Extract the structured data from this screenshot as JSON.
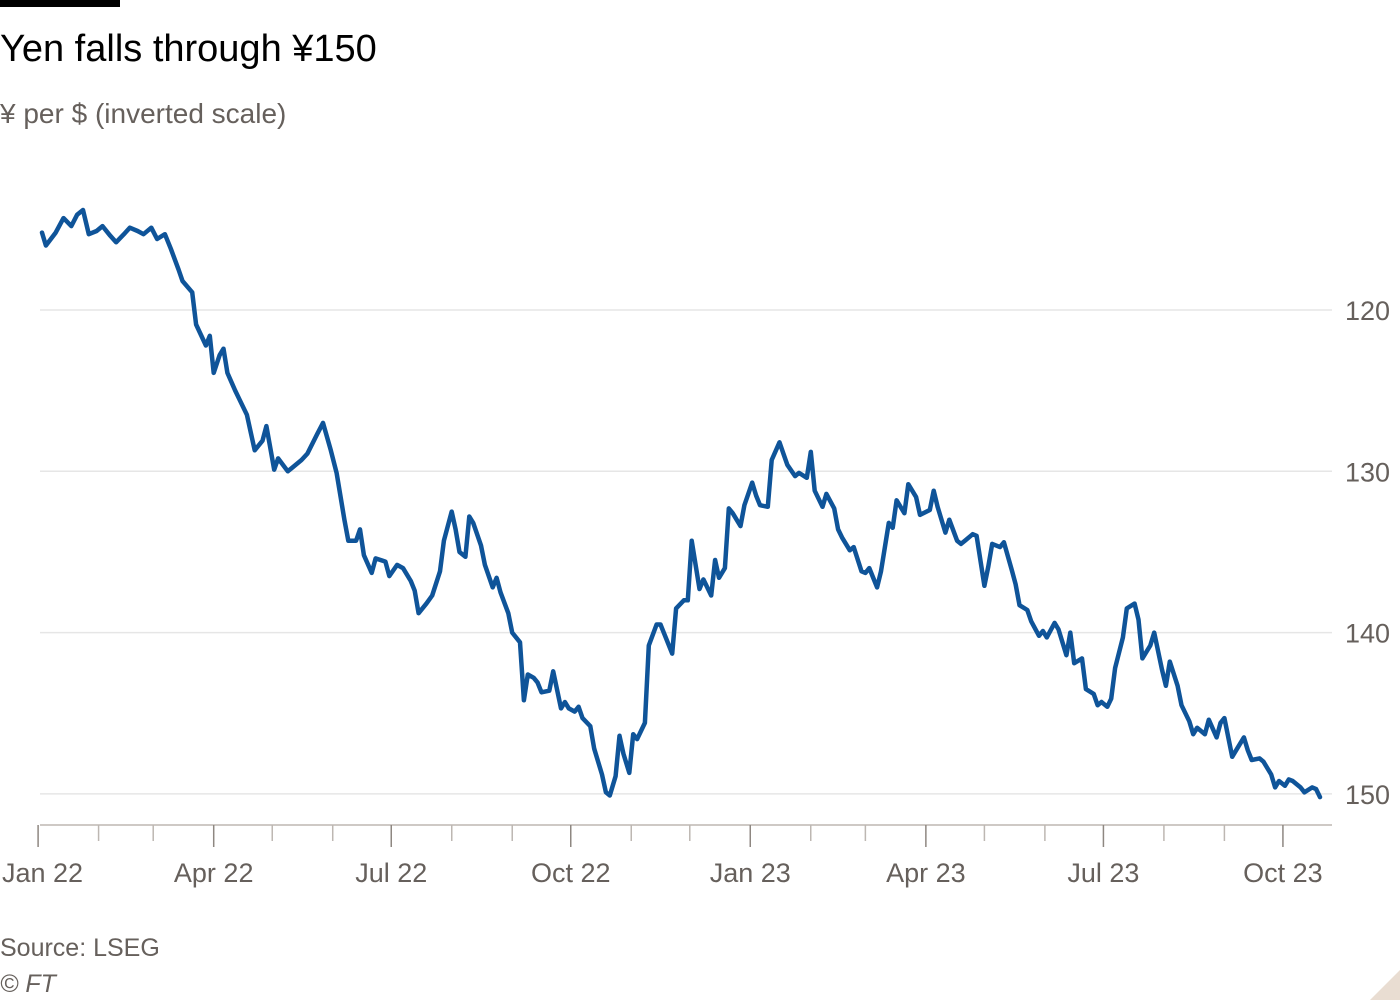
{
  "header": {
    "title": "Yen falls through ¥150",
    "subtitle": "¥ per $ (inverted scale)"
  },
  "footer": {
    "source": "Source: LSEG",
    "copyright": "© FT"
  },
  "colors": {
    "line": "#0f5499",
    "grid": "#e6e6e6",
    "text_muted": "#66605c"
  },
  "chart_data": {
    "type": "line",
    "title": "Yen falls through ¥150",
    "subtitle": "¥ per $ (inverted scale)",
    "xlabel": "",
    "ylabel": "",
    "y_inverted": true,
    "ylim": [
      110,
      152
    ],
    "y_ticks": [
      120,
      130,
      140,
      150
    ],
    "y_tick_labels": [
      "120",
      "130",
      "140",
      "150"
    ],
    "x_range": [
      "2022-01-03",
      "2023-10-20"
    ],
    "x_ticks": [
      "2022-01-01",
      "2022-02-01",
      "2022-03-01",
      "2022-04-01",
      "2022-05-01",
      "2022-06-01",
      "2022-07-01",
      "2022-08-01",
      "2022-09-01",
      "2022-10-01",
      "2022-11-01",
      "2022-12-01",
      "2023-01-01",
      "2023-02-01",
      "2023-03-01",
      "2023-04-01",
      "2023-05-01",
      "2023-06-01",
      "2023-07-01",
      "2023-08-01",
      "2023-09-01",
      "2023-10-01"
    ],
    "x_tick_labels": [
      {
        "date": "2022-01-01",
        "label": "Jan 22"
      },
      {
        "date": "2022-04-01",
        "label": "Apr 22"
      },
      {
        "date": "2022-07-01",
        "label": "Jul 22"
      },
      {
        "date": "2022-10-01",
        "label": "Oct 22"
      },
      {
        "date": "2023-01-01",
        "label": "Jan 23"
      },
      {
        "date": "2023-04-01",
        "label": "Apr 23"
      },
      {
        "date": "2023-07-01",
        "label": "Jul 23"
      },
      {
        "date": "2023-10-01",
        "label": "Oct 23"
      }
    ],
    "grid": true,
    "legend": "none",
    "series": [
      {
        "points": [
          [
            "2022-01-03",
            115.2
          ],
          [
            "2022-01-05",
            116.0
          ],
          [
            "2022-01-10",
            115.2
          ],
          [
            "2022-01-14",
            114.3
          ],
          [
            "2022-01-18",
            114.8
          ],
          [
            "2022-01-21",
            114.1
          ],
          [
            "2022-01-24",
            113.8
          ],
          [
            "2022-01-27",
            115.3
          ],
          [
            "2022-01-31",
            115.1
          ],
          [
            "2022-02-03",
            114.8
          ],
          [
            "2022-02-07",
            115.4
          ],
          [
            "2022-02-10",
            115.8
          ],
          [
            "2022-02-14",
            115.3
          ],
          [
            "2022-02-17",
            114.9
          ],
          [
            "2022-02-21",
            115.1
          ],
          [
            "2022-02-24",
            115.3
          ],
          [
            "2022-02-28",
            114.9
          ],
          [
            "2022-03-03",
            115.6
          ],
          [
            "2022-03-07",
            115.3
          ],
          [
            "2022-03-10",
            116.2
          ],
          [
            "2022-03-14",
            117.5
          ],
          [
            "2022-03-16",
            118.2
          ],
          [
            "2022-03-21",
            118.9
          ],
          [
            "2022-03-23",
            120.9
          ],
          [
            "2022-03-28",
            122.2
          ],
          [
            "2022-03-30",
            121.6
          ],
          [
            "2022-04-01",
            123.9
          ],
          [
            "2022-04-04",
            122.8
          ],
          [
            "2022-04-06",
            122.4
          ],
          [
            "2022-04-08",
            123.9
          ],
          [
            "2022-04-12",
            125.0
          ],
          [
            "2022-04-14",
            125.5
          ],
          [
            "2022-04-18",
            126.5
          ],
          [
            "2022-04-20",
            127.6
          ],
          [
            "2022-04-22",
            128.7
          ],
          [
            "2022-04-26",
            128.1
          ],
          [
            "2022-04-28",
            127.2
          ],
          [
            "2022-05-02",
            129.9
          ],
          [
            "2022-05-04",
            129.2
          ],
          [
            "2022-05-09",
            130.0
          ],
          [
            "2022-05-11",
            129.8
          ],
          [
            "2022-05-16",
            129.3
          ],
          [
            "2022-05-19",
            128.9
          ],
          [
            "2022-05-24",
            127.7
          ],
          [
            "2022-05-27",
            127.0
          ],
          [
            "2022-05-31",
            128.7
          ],
          [
            "2022-06-03",
            130.1
          ],
          [
            "2022-06-07",
            133.0
          ],
          [
            "2022-06-09",
            134.3
          ],
          [
            "2022-06-13",
            134.3
          ],
          [
            "2022-06-15",
            133.6
          ],
          [
            "2022-06-17",
            135.2
          ],
          [
            "2022-06-21",
            136.3
          ],
          [
            "2022-06-23",
            135.4
          ],
          [
            "2022-06-28",
            135.6
          ],
          [
            "2022-06-30",
            136.5
          ],
          [
            "2022-07-04",
            135.8
          ],
          [
            "2022-07-07",
            136.0
          ],
          [
            "2022-07-11",
            136.8
          ],
          [
            "2022-07-13",
            137.4
          ],
          [
            "2022-07-15",
            138.8
          ],
          [
            "2022-07-19",
            138.2
          ],
          [
            "2022-07-22",
            137.7
          ],
          [
            "2022-07-26",
            136.2
          ],
          [
            "2022-07-28",
            134.3
          ],
          [
            "2022-08-01",
            132.5
          ],
          [
            "2022-08-03",
            133.6
          ],
          [
            "2022-08-05",
            135.0
          ],
          [
            "2022-08-08",
            135.3
          ],
          [
            "2022-08-10",
            132.8
          ],
          [
            "2022-08-12",
            133.2
          ],
          [
            "2022-08-16",
            134.6
          ],
          [
            "2022-08-18",
            135.8
          ],
          [
            "2022-08-22",
            137.2
          ],
          [
            "2022-08-24",
            136.6
          ],
          [
            "2022-08-26",
            137.5
          ],
          [
            "2022-08-30",
            138.8
          ],
          [
            "2022-09-01",
            140.0
          ],
          [
            "2022-09-05",
            140.6
          ],
          [
            "2022-09-07",
            144.2
          ],
          [
            "2022-09-09",
            142.6
          ],
          [
            "2022-09-12",
            142.8
          ],
          [
            "2022-09-14",
            143.1
          ],
          [
            "2022-09-16",
            143.7
          ],
          [
            "2022-09-20",
            143.6
          ],
          [
            "2022-09-22",
            142.4
          ],
          [
            "2022-09-26",
            144.7
          ],
          [
            "2022-09-28",
            144.3
          ],
          [
            "2022-09-30",
            144.7
          ],
          [
            "2022-10-03",
            144.9
          ],
          [
            "2022-10-05",
            144.6
          ],
          [
            "2022-10-07",
            145.3
          ],
          [
            "2022-10-11",
            145.8
          ],
          [
            "2022-10-13",
            147.2
          ],
          [
            "2022-10-17",
            148.8
          ],
          [
            "2022-10-19",
            149.9
          ],
          [
            "2022-10-21",
            150.1
          ],
          [
            "2022-10-24",
            148.9
          ],
          [
            "2022-10-26",
            146.4
          ],
          [
            "2022-10-28",
            147.5
          ],
          [
            "2022-10-31",
            148.7
          ],
          [
            "2022-11-02",
            146.3
          ],
          [
            "2022-11-04",
            146.6
          ],
          [
            "2022-11-08",
            145.6
          ],
          [
            "2022-11-10",
            140.8
          ],
          [
            "2022-11-14",
            139.5
          ],
          [
            "2022-11-16",
            139.5
          ],
          [
            "2022-11-18",
            140.1
          ],
          [
            "2022-11-22",
            141.3
          ],
          [
            "2022-11-24",
            138.5
          ],
          [
            "2022-11-28",
            138.0
          ],
          [
            "2022-11-30",
            138.0
          ],
          [
            "2022-12-02",
            134.3
          ],
          [
            "2022-12-06",
            137.3
          ],
          [
            "2022-12-08",
            136.7
          ],
          [
            "2022-12-12",
            137.7
          ],
          [
            "2022-12-14",
            135.5
          ],
          [
            "2022-12-16",
            136.6
          ],
          [
            "2022-12-19",
            136.0
          ],
          [
            "2022-12-21",
            132.3
          ],
          [
            "2022-12-23",
            132.6
          ],
          [
            "2022-12-27",
            133.4
          ],
          [
            "2022-12-29",
            132.1
          ],
          [
            "2023-01-02",
            130.7
          ],
          [
            "2023-01-04",
            131.5
          ],
          [
            "2023-01-06",
            132.1
          ],
          [
            "2023-01-10",
            132.2
          ],
          [
            "2023-01-12",
            129.3
          ],
          [
            "2023-01-16",
            128.2
          ],
          [
            "2023-01-18",
            128.9
          ],
          [
            "2023-01-20",
            129.6
          ],
          [
            "2023-01-24",
            130.3
          ],
          [
            "2023-01-26",
            130.1
          ],
          [
            "2023-01-30",
            130.4
          ],
          [
            "2023-02-01",
            128.8
          ],
          [
            "2023-02-03",
            131.2
          ],
          [
            "2023-02-07",
            132.2
          ],
          [
            "2023-02-09",
            131.4
          ],
          [
            "2023-02-13",
            132.3
          ],
          [
            "2023-02-15",
            133.6
          ],
          [
            "2023-02-17",
            134.1
          ],
          [
            "2023-02-21",
            134.9
          ],
          [
            "2023-02-23",
            134.7
          ],
          [
            "2023-02-27",
            136.2
          ],
          [
            "2023-03-01",
            136.3
          ],
          [
            "2023-03-03",
            136.0
          ],
          [
            "2023-03-07",
            137.2
          ],
          [
            "2023-03-09",
            136.2
          ],
          [
            "2023-03-13",
            133.2
          ],
          [
            "2023-03-15",
            133.5
          ],
          [
            "2023-03-17",
            131.8
          ],
          [
            "2023-03-21",
            132.6
          ],
          [
            "2023-03-23",
            130.8
          ],
          [
            "2023-03-27",
            131.6
          ],
          [
            "2023-03-29",
            132.7
          ],
          [
            "2023-04-03",
            132.4
          ],
          [
            "2023-04-05",
            131.2
          ],
          [
            "2023-04-07",
            132.2
          ],
          [
            "2023-04-11",
            133.8
          ],
          [
            "2023-04-13",
            133.0
          ],
          [
            "2023-04-17",
            134.3
          ],
          [
            "2023-04-19",
            134.5
          ],
          [
            "2023-04-21",
            134.3
          ],
          [
            "2023-04-25",
            133.9
          ],
          [
            "2023-04-27",
            134.0
          ],
          [
            "2023-05-01",
            137.1
          ],
          [
            "2023-05-03",
            135.9
          ],
          [
            "2023-05-05",
            134.5
          ],
          [
            "2023-05-09",
            134.7
          ],
          [
            "2023-05-11",
            134.4
          ],
          [
            "2023-05-15",
            136.1
          ],
          [
            "2023-05-17",
            137.0
          ],
          [
            "2023-05-19",
            138.3
          ],
          [
            "2023-05-23",
            138.6
          ],
          [
            "2023-05-25",
            139.3
          ],
          [
            "2023-05-29",
            140.2
          ],
          [
            "2023-05-31",
            139.9
          ],
          [
            "2023-06-02",
            140.3
          ],
          [
            "2023-06-06",
            139.4
          ],
          [
            "2023-06-08",
            139.8
          ],
          [
            "2023-06-12",
            141.4
          ],
          [
            "2023-06-14",
            140.0
          ],
          [
            "2023-06-16",
            141.9
          ],
          [
            "2023-06-20",
            141.6
          ],
          [
            "2023-06-22",
            143.5
          ],
          [
            "2023-06-26",
            143.8
          ],
          [
            "2023-06-28",
            144.5
          ],
          [
            "2023-06-30",
            144.3
          ],
          [
            "2023-07-03",
            144.6
          ],
          [
            "2023-07-05",
            144.1
          ],
          [
            "2023-07-07",
            142.2
          ],
          [
            "2023-07-11",
            140.3
          ],
          [
            "2023-07-13",
            138.5
          ],
          [
            "2023-07-17",
            138.2
          ],
          [
            "2023-07-19",
            139.2
          ],
          [
            "2023-07-21",
            141.6
          ],
          [
            "2023-07-25",
            140.8
          ],
          [
            "2023-07-27",
            140.0
          ],
          [
            "2023-07-31",
            142.3
          ],
          [
            "2023-08-02",
            143.3
          ],
          [
            "2023-08-04",
            141.8
          ],
          [
            "2023-08-08",
            143.3
          ],
          [
            "2023-08-10",
            144.5
          ],
          [
            "2023-08-14",
            145.5
          ],
          [
            "2023-08-16",
            146.3
          ],
          [
            "2023-08-18",
            145.9
          ],
          [
            "2023-08-22",
            146.3
          ],
          [
            "2023-08-24",
            145.4
          ],
          [
            "2023-08-28",
            146.5
          ],
          [
            "2023-08-30",
            145.6
          ],
          [
            "2023-09-01",
            145.3
          ],
          [
            "2023-09-05",
            147.7
          ],
          [
            "2023-09-07",
            147.3
          ],
          [
            "2023-09-11",
            146.5
          ],
          [
            "2023-09-13",
            147.3
          ],
          [
            "2023-09-15",
            147.9
          ],
          [
            "2023-09-19",
            147.8
          ],
          [
            "2023-09-21",
            148.0
          ],
          [
            "2023-09-25",
            148.8
          ],
          [
            "2023-09-27",
            149.6
          ],
          [
            "2023-09-29",
            149.2
          ],
          [
            "2023-10-02",
            149.5
          ],
          [
            "2023-10-04",
            149.1
          ],
          [
            "2023-10-06",
            149.2
          ],
          [
            "2023-10-10",
            149.6
          ],
          [
            "2023-10-12",
            149.9
          ],
          [
            "2023-10-16",
            149.6
          ],
          [
            "2023-10-18",
            149.7
          ],
          [
            "2023-10-20",
            150.2
          ]
        ]
      }
    ]
  }
}
